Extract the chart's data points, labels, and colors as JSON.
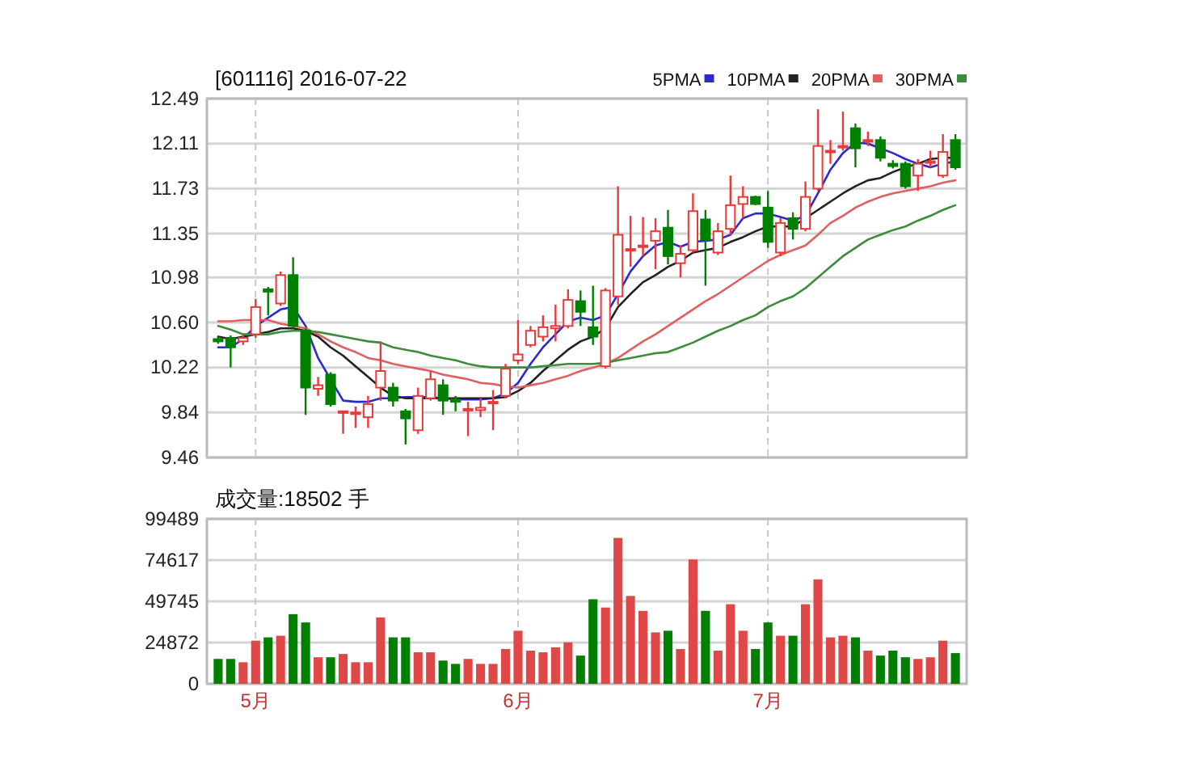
{
  "chart_data": [
    {
      "type": "candlestick",
      "title": "[601116] 2016-07-22",
      "legend": "top right",
      "grid": true,
      "tick_labels": "y",
      "categories": [
        null,
        null,
        null,
        null,
        null,
        null,
        null,
        null,
        null,
        null,
        null,
        null,
        null,
        null,
        null,
        null,
        null,
        null,
        null,
        null,
        null,
        null,
        null,
        null,
        null,
        null,
        null,
        null,
        null,
        null,
        null,
        null,
        null,
        null,
        null,
        null,
        null,
        null,
        null,
        null,
        null,
        null,
        null,
        null,
        null,
        null,
        null,
        null,
        null,
        null,
        null,
        null,
        null,
        null,
        null,
        null,
        null,
        null,
        null,
        null
      ],
      "ylim": [
        9.46,
        12.49
      ],
      "yticks": [
        9.46,
        9.84,
        10.22,
        {
          "value": 10.6,
          "label": "10.60"
        },
        10.98,
        11.35,
        11.73,
        12.11,
        12.49
      ],
      "ohlc": [
        [
          10.46,
          10.48,
          10.42,
          10.44
        ],
        [
          10.47,
          10.49,
          10.22,
          10.39
        ],
        [
          10.44,
          10.5,
          10.41,
          10.47
        ],
        [
          10.5,
          10.8,
          10.47,
          10.73
        ],
        [
          10.88,
          10.9,
          10.66,
          10.86
        ],
        [
          10.76,
          11.03,
          10.74,
          11.0
        ],
        [
          11.0,
          11.15,
          10.55,
          10.57
        ],
        [
          10.53,
          10.55,
          9.82,
          10.05
        ],
        [
          10.04,
          10.14,
          9.98,
          10.07
        ],
        [
          10.16,
          10.18,
          9.89,
          9.91
        ],
        [
          9.84,
          9.85,
          9.66,
          9.85
        ],
        [
          9.83,
          9.89,
          9.71,
          9.84
        ],
        [
          9.8,
          9.98,
          9.71,
          9.91
        ],
        [
          10.05,
          10.44,
          9.94,
          10.19
        ],
        [
          10.05,
          10.09,
          9.89,
          9.94
        ],
        [
          9.85,
          9.87,
          9.57,
          9.79
        ],
        [
          9.69,
          10.05,
          9.66,
          9.98
        ],
        [
          9.96,
          10.19,
          9.94,
          10.12
        ],
        [
          10.07,
          10.12,
          9.82,
          9.94
        ],
        [
          9.95,
          9.98,
          9.85,
          9.93
        ],
        [
          9.86,
          9.93,
          9.64,
          9.87
        ],
        [
          9.86,
          9.96,
          9.8,
          9.88
        ],
        [
          9.92,
          10.03,
          9.69,
          9.93
        ],
        [
          9.98,
          10.25,
          9.96,
          10.21
        ],
        [
          10.28,
          10.62,
          10.25,
          10.33
        ],
        [
          10.41,
          10.57,
          10.39,
          10.53
        ],
        [
          10.48,
          10.66,
          10.44,
          10.56
        ],
        [
          10.55,
          10.75,
          10.44,
          10.57
        ],
        [
          10.57,
          10.88,
          10.55,
          10.79
        ],
        [
          10.78,
          10.87,
          10.57,
          10.69
        ],
        [
          10.56,
          10.91,
          10.41,
          10.48
        ],
        [
          10.23,
          10.89,
          10.21,
          10.87
        ],
        [
          10.82,
          11.75,
          10.75,
          11.34
        ],
        [
          11.21,
          11.5,
          11.07,
          11.22
        ],
        [
          11.24,
          11.49,
          11.16,
          11.25
        ],
        [
          11.29,
          11.48,
          11.05,
          11.37
        ],
        [
          11.4,
          11.55,
          11.09,
          11.16
        ],
        [
          11.1,
          11.25,
          10.98,
          11.18
        ],
        [
          11.21,
          11.69,
          11.19,
          11.54
        ],
        [
          11.47,
          11.55,
          10.91,
          11.3
        ],
        [
          11.19,
          11.44,
          11.17,
          11.37
        ],
        [
          11.39,
          11.84,
          11.34,
          11.59
        ],
        [
          11.6,
          11.75,
          11.48,
          11.66
        ],
        [
          11.66,
          11.67,
          11.59,
          11.6
        ],
        [
          11.57,
          11.71,
          11.23,
          11.28
        ],
        [
          11.19,
          11.48,
          11.16,
          11.44
        ],
        [
          11.48,
          11.53,
          11.3,
          11.39
        ],
        [
          11.39,
          11.79,
          11.37,
          11.66
        ],
        [
          11.73,
          12.4,
          11.71,
          12.09
        ],
        [
          12.04,
          12.14,
          11.94,
          12.05
        ],
        [
          12.08,
          12.38,
          12.05,
          12.09
        ],
        [
          12.24,
          12.28,
          11.91,
          12.07
        ],
        [
          12.13,
          12.21,
          12.09,
          12.14
        ],
        [
          12.14,
          12.17,
          11.96,
          11.99
        ],
        [
          11.94,
          11.97,
          11.9,
          11.92
        ],
        [
          11.94,
          11.96,
          11.73,
          11.75
        ],
        [
          11.84,
          11.98,
          11.71,
          11.94
        ],
        [
          11.95,
          12.05,
          11.91,
          11.96
        ],
        [
          11.84,
          12.19,
          11.82,
          12.04
        ],
        [
          12.14,
          12.19,
          11.89,
          11.91
        ]
      ],
      "series": [
        {
          "type": "line",
          "name": "5PMA",
          "color": "#2a2ad0",
          "values": [
            10.39,
            10.39,
            10.46,
            10.57,
            10.64,
            10.71,
            10.73,
            10.57,
            10.3,
            10.12,
            9.94,
            9.93,
            9.93,
            9.96,
            9.96,
            9.97,
            9.97,
            9.97,
            9.96,
            9.95,
            9.95,
            9.95,
            9.96,
            10.0,
            10.09,
            10.25,
            10.39,
            10.5,
            10.61,
            10.64,
            10.62,
            10.66,
            10.84,
            11.03,
            11.16,
            11.25,
            11.28,
            11.24,
            11.28,
            11.29,
            11.3,
            11.34,
            11.48,
            11.52,
            11.52,
            11.49,
            11.46,
            11.5,
            11.69,
            11.89,
            12.03,
            12.12,
            12.11,
            12.07,
            12.03,
            11.98,
            11.94,
            11.91,
            11.94,
            11.96
          ]
        },
        {
          "type": "line",
          "name": "10PMA",
          "color": "#222222",
          "values": [
            10.48,
            10.46,
            10.48,
            10.5,
            10.52,
            10.55,
            10.55,
            10.53,
            10.48,
            10.39,
            10.32,
            10.23,
            10.14,
            10.05,
            9.98,
            9.96,
            9.96,
            9.96,
            9.96,
            9.96,
            9.96,
            9.96,
            9.96,
            9.97,
            10.02,
            10.09,
            10.19,
            10.28,
            10.37,
            10.44,
            10.48,
            10.55,
            10.73,
            10.84,
            10.94,
            11.0,
            11.07,
            11.12,
            11.19,
            11.21,
            11.23,
            11.28,
            11.32,
            11.37,
            11.41,
            11.41,
            11.41,
            11.48,
            11.55,
            11.62,
            11.69,
            11.75,
            11.8,
            11.82,
            11.87,
            11.91,
            11.94,
            11.98,
            11.99,
            11.99
          ]
        },
        {
          "type": "line",
          "name": "20PMA",
          "color": "#e06060",
          "values": [
            10.61,
            10.61,
            10.62,
            10.62,
            10.62,
            10.59,
            10.57,
            10.55,
            10.5,
            10.44,
            10.39,
            10.35,
            10.3,
            10.28,
            10.25,
            10.23,
            10.21,
            10.19,
            10.16,
            10.14,
            10.12,
            10.09,
            10.08,
            10.06,
            10.05,
            10.07,
            10.09,
            10.12,
            10.15,
            10.19,
            10.22,
            10.25,
            10.3,
            10.37,
            10.44,
            10.5,
            10.57,
            10.64,
            10.71,
            10.78,
            10.84,
            10.91,
            10.98,
            11.05,
            11.12,
            11.17,
            11.21,
            11.25,
            11.34,
            11.44,
            11.5,
            11.57,
            11.62,
            11.66,
            11.69,
            11.71,
            11.73,
            11.75,
            11.78,
            11.8
          ]
        },
        {
          "type": "line",
          "name": "30PMA",
          "color": "#3c8c3c",
          "values": [
            10.57,
            10.54,
            10.5,
            10.5,
            10.5,
            10.52,
            10.53,
            10.53,
            10.52,
            10.5,
            10.48,
            10.46,
            10.44,
            10.43,
            10.39,
            10.37,
            10.35,
            10.32,
            10.3,
            10.28,
            10.25,
            10.23,
            10.22,
            10.22,
            10.22,
            10.22,
            10.23,
            10.24,
            10.25,
            10.25,
            10.25,
            10.26,
            10.28,
            10.3,
            10.32,
            10.34,
            10.35,
            10.39,
            10.43,
            10.48,
            10.53,
            10.57,
            10.62,
            10.66,
            10.73,
            10.78,
            10.82,
            10.89,
            10.98,
            11.07,
            11.16,
            11.23,
            11.3,
            11.34,
            11.38,
            11.41,
            11.46,
            11.5,
            11.55,
            11.59
          ]
        }
      ]
    },
    {
      "type": "bar",
      "title": "成交量:18502 手",
      "grid": true,
      "categories": [
        null,
        null,
        null,
        "5月",
        null,
        null,
        null,
        null,
        null,
        null,
        null,
        null,
        null,
        null,
        null,
        null,
        null,
        null,
        null,
        null,
        null,
        null,
        null,
        null,
        "6月",
        null,
        null,
        null,
        null,
        null,
        null,
        null,
        null,
        null,
        null,
        null,
        null,
        null,
        null,
        null,
        null,
        null,
        null,
        null,
        "7月",
        null,
        null,
        null,
        null,
        null,
        null,
        null,
        null,
        null,
        null,
        null,
        null,
        null,
        null,
        null
      ],
      "ylim": [
        0,
        99489
      ],
      "yticks": [
        0,
        24872,
        49745,
        74617,
        99489
      ],
      "values": [
        15000,
        15000,
        13000,
        26000,
        28000,
        29000,
        42000,
        37000,
        16000,
        16000,
        18000,
        13000,
        13000,
        40000,
        28000,
        28000,
        19000,
        19000,
        14000,
        12000,
        15000,
        12000,
        12000,
        21000,
        32000,
        20000,
        19000,
        22000,
        25000,
        17000,
        51000,
        46000,
        88000,
        53000,
        44000,
        31000,
        32000,
        21000,
        75000,
        44000,
        20000,
        48000,
        32000,
        21000,
        37000,
        29000,
        29000,
        48000,
        63000,
        28000,
        29000,
        28000,
        20000,
        17000,
        20000,
        16000,
        15000,
        16000,
        26000,
        18502
      ],
      "colors": [
        "#007f00",
        "#007f00",
        "#e04848",
        "#e04848",
        "#007f00",
        "#e04848",
        "#007f00",
        "#007f00",
        "#e04848",
        "#007f00",
        "#e04848",
        "#e04848",
        "#e04848",
        "#e04848",
        "#007f00",
        "#007f00",
        "#e04848",
        "#e04848",
        "#007f00",
        "#007f00",
        "#e04848",
        "#e04848",
        "#e04848",
        "#e04848",
        "#e04848",
        "#e04848",
        "#e04848",
        "#e04848",
        "#e04848",
        "#007f00",
        "#007f00",
        "#e04848",
        "#e04848",
        "#e04848",
        "#e04848",
        "#e04848",
        "#007f00",
        "#e04848",
        "#e04848",
        "#007f00",
        "#e04848",
        "#e04848",
        "#e04848",
        "#007f00",
        "#007f00",
        "#e04848",
        "#007f00",
        "#e04848",
        "#e04848",
        "#e04848",
        "#e04848",
        "#007f00",
        "#e04848",
        "#007f00",
        "#007f00",
        "#007f00",
        "#e04848",
        "#e04848",
        "#e04848",
        "#007f00"
      ]
    }
  ]
}
